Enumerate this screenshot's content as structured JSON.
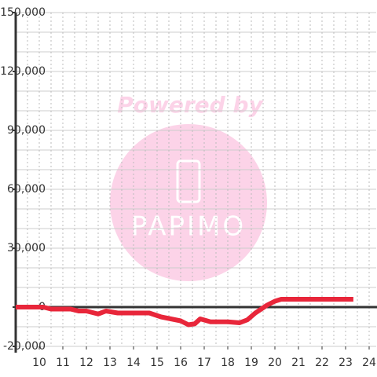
{
  "chart_data": {
    "type": "line",
    "x": [
      9,
      10.17,
      10.5,
      11.33,
      11.67,
      12,
      12.5,
      12.83,
      13.33,
      14.67,
      15.17,
      16,
      16.33,
      16.6,
      16.83,
      17.27,
      18,
      18.5,
      18.83,
      19.17,
      19.67,
      20,
      20.27,
      23.33
    ],
    "series": [
      {
        "color": "#e8263a",
        "values": [
          0,
          0,
          -1000,
          -1000,
          -2000,
          -2000,
          -3500,
          -2000,
          -3000,
          -3000,
          -5000,
          -7000,
          -9000,
          -8500,
          -6000,
          -7500,
          -7500,
          -8000,
          -6500,
          -3000,
          1000,
          3000,
          4000,
          4000
        ]
      }
    ],
    "xlim": [
      9,
      24.3
    ],
    "xticks": [
      10,
      11,
      12,
      13,
      14,
      15,
      16,
      17,
      18,
      19,
      20,
      21,
      22,
      23,
      24
    ],
    "xgrid": [
      9.5,
      10,
      10.5,
      11,
      11.5,
      12,
      12.5,
      13,
      13.5,
      14,
      14.5,
      15,
      15.5,
      16,
      16.5,
      17,
      17.5,
      18,
      18.5,
      19,
      19.5,
      20,
      20.5,
      21,
      21.5,
      22,
      22.5,
      23,
      23.5,
      24
    ],
    "ylim": [
      -20000,
      150000
    ],
    "yticks": [
      {
        "value": -20000,
        "label": "-20,000"
      },
      0,
      {
        "value": 30000,
        "label": "30,000"
      },
      {
        "value": 60000,
        "label": "60,000"
      },
      {
        "value": 90000,
        "label": "90,000"
      },
      {
        "value": 120000,
        "label": "120,000"
      },
      {
        "value": 150000,
        "label": "150,000"
      }
    ],
    "ygrid": [
      -20000,
      -10000,
      10000,
      20000,
      30000,
      40000,
      50000,
      60000,
      70000,
      80000,
      90000,
      100000,
      110000,
      120000,
      130000,
      140000,
      150000
    ],
    "grid": true
  },
  "watermark": {
    "line1": "Powered by",
    "line2": "PAPIMO"
  }
}
